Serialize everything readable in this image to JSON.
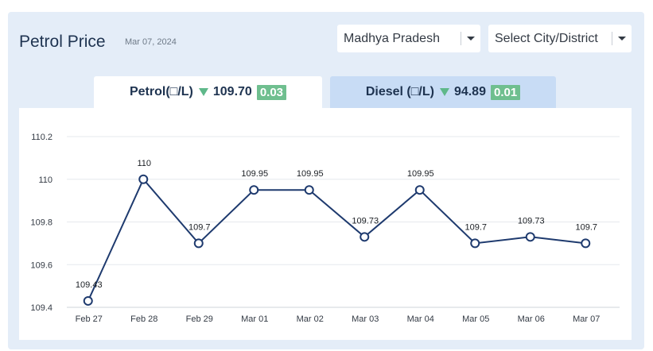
{
  "header": {
    "title": "Petrol Price",
    "date": "Mar 07, 2024"
  },
  "filters": {
    "state": {
      "value": "Madhya Pradesh"
    },
    "city": {
      "value": "Select City/District"
    }
  },
  "tabs": [
    {
      "label": "Petrol(□/L)",
      "price": "109.70",
      "change": "0.03",
      "trend": "down",
      "active": true
    },
    {
      "label": "Diesel (□/L)",
      "price": "94.89",
      "change": "0.01",
      "trend": "down",
      "active": false
    }
  ],
  "colors": {
    "line": "#1e3a6e",
    "badge": "#6fbf8f",
    "down_arrow": "#5fb88a",
    "active_tab": "#ffffff",
    "inactive_tab": "#c8dcf5"
  },
  "chart_data": {
    "type": "line",
    "categories": [
      "Feb 27",
      "Feb 28",
      "Feb 29",
      "Mar 01",
      "Mar 02",
      "Mar 03",
      "Mar 04",
      "Mar 05",
      "Mar 06",
      "Mar 07"
    ],
    "values": [
      109.43,
      110,
      109.7,
      109.95,
      109.95,
      109.73,
      109.95,
      109.7,
      109.73,
      109.7
    ],
    "data_labels": [
      "109.43",
      "110",
      "109.7",
      "109.95",
      "109.95",
      "109.73",
      "109.95",
      "109.7",
      "109.73",
      "109.7"
    ],
    "y_ticks": [
      "109.4",
      "109.6",
      "109.8",
      "110",
      "110.2"
    ],
    "ylim": [
      109.4,
      110.2
    ],
    "grid": true
  }
}
